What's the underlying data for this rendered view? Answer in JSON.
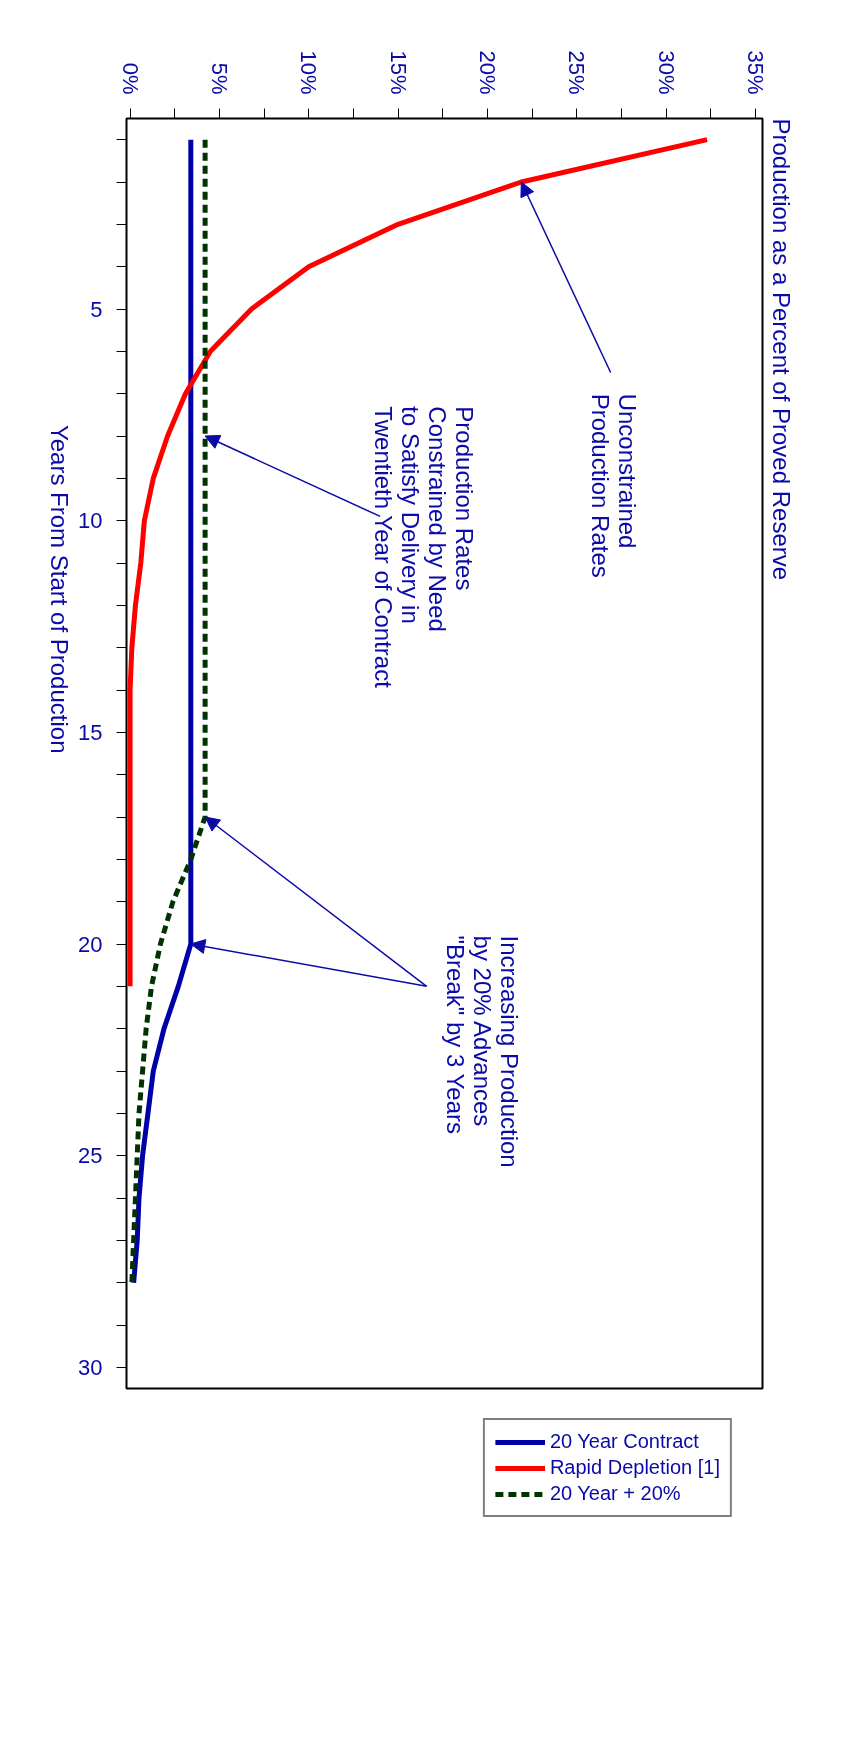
{
  "chart_data": {
    "type": "line",
    "title": "Production as a Percent of Proved Reserve",
    "ylabel": "Years From Start of Production",
    "series": [
      {
        "name": "20 Year Contract",
        "color": "#0000a8",
        "line_style": "solid",
        "x": [
          3.4,
          3.4,
          3.4,
          3.4,
          3.4,
          3.4,
          3.4,
          3.4,
          3.4,
          3.4,
          3.4,
          3.4,
          3.4,
          3.4,
          3.4,
          3.4,
          3.4,
          3.4,
          3.4,
          3.4,
          2.7,
          1.9,
          1.3,
          1.0,
          0.7,
          0.5,
          0.4,
          0.2
        ],
        "values": [
          1,
          2,
          3,
          4,
          5,
          6,
          7,
          8,
          9,
          10,
          11,
          12,
          13,
          14,
          15,
          16,
          17,
          18,
          19,
          20,
          21,
          22,
          23,
          24,
          25,
          26,
          27,
          28
        ]
      },
      {
        "name": "Rapid Depletion [1]",
        "color": "#ff0000",
        "line_style": "solid",
        "x": [
          32.3,
          21.9,
          15.0,
          10.0,
          6.8,
          4.5,
          3.1,
          2.1,
          1.3,
          0.8,
          0.6,
          0.3,
          0.1,
          0,
          0,
          0,
          0,
          0,
          0,
          0,
          0
        ],
        "values": [
          1,
          2,
          3,
          4,
          5,
          6,
          7,
          8,
          9,
          10,
          11,
          12,
          13,
          14,
          15,
          16,
          17,
          18,
          19,
          20,
          21
        ]
      },
      {
        "name": "20 Year + 20%",
        "color": "#003300",
        "line_style": "dashed",
        "x": [
          4.2,
          4.2,
          4.2,
          4.2,
          4.2,
          4.2,
          4.2,
          4.2,
          4.2,
          4.2,
          4.2,
          4.2,
          4.2,
          4.2,
          4.2,
          4.2,
          4.2,
          3.4,
          2.4,
          1.7,
          1.2,
          0.9,
          0.7,
          0.5,
          0.4,
          0.3,
          0.2,
          0.1
        ],
        "values": [
          1,
          2,
          3,
          4,
          5,
          6,
          7,
          8,
          9,
          10,
          11,
          12,
          13,
          14,
          15,
          16,
          17,
          18,
          19,
          20,
          21,
          22,
          23,
          24,
          25,
          26,
          27,
          28
        ]
      }
    ],
    "xlim": [
      -0.2,
      35.4
    ],
    "xticks": [
      {
        "value": 0,
        "label": "0%"
      },
      {
        "value": 2.5,
        "label": null
      },
      {
        "value": 5,
        "label": "5%"
      },
      {
        "value": 7.5,
        "label": null
      },
      {
        "value": 10,
        "label": "10%"
      },
      {
        "value": 12.5,
        "label": null
      },
      {
        "value": 15,
        "label": "15%"
      },
      {
        "value": 17.5,
        "label": null
      },
      {
        "value": 20,
        "label": "20%"
      },
      {
        "value": 22.5,
        "label": null
      },
      {
        "value": 25,
        "label": "25%"
      },
      {
        "value": 27.5,
        "label": null
      },
      {
        "value": 30,
        "label": "30%"
      },
      {
        "value": 32.5,
        "label": null
      },
      {
        "value": 35,
        "label": "35%"
      }
    ],
    "ylim": [
      30.5,
      0.5
    ],
    "yticks": [
      {
        "value": 1,
        "label": null
      },
      {
        "value": 2,
        "label": null
      },
      {
        "value": 3,
        "label": null
      },
      {
        "value": 4,
        "label": null
      },
      5,
      {
        "value": 6,
        "label": null
      },
      {
        "value": 7,
        "label": null
      },
      {
        "value": 8,
        "label": null
      },
      {
        "value": 9,
        "label": null
      },
      10,
      {
        "value": 11,
        "label": null
      },
      {
        "value": 12,
        "label": null
      },
      {
        "value": 13,
        "label": null
      },
      {
        "value": 14,
        "label": null
      },
      15,
      {
        "value": 16,
        "label": null
      },
      {
        "value": 17,
        "label": null
      },
      {
        "value": 18,
        "label": null
      },
      {
        "value": 19,
        "label": null
      },
      20,
      {
        "value": 21,
        "label": null
      },
      {
        "value": 22,
        "label": null
      },
      {
        "value": 23,
        "label": null
      },
      {
        "value": 24,
        "label": null
      },
      25,
      {
        "value": 26,
        "label": null
      },
      {
        "value": 27,
        "label": null
      },
      {
        "value": 28,
        "label": null
      },
      {
        "value": 29,
        "label": null
      },
      30
    ],
    "annotations": [
      {
        "text": "Unconstrained\nProduction Rates",
        "x": 21.9,
        "y": 2
      },
      {
        "text": "Production Rates\nConstrained by Need\nto Satisfy Delivery in\nTwentieth Year of Contract",
        "x": 4.2,
        "y": 8
      },
      {
        "text": "Increasing Production\nby 20% Advances\n\"Break\" by 3 Years",
        "x": 3.4,
        "y": 20
      }
    ],
    "grid": false,
    "legend": "bottom",
    "marker": "none"
  }
}
